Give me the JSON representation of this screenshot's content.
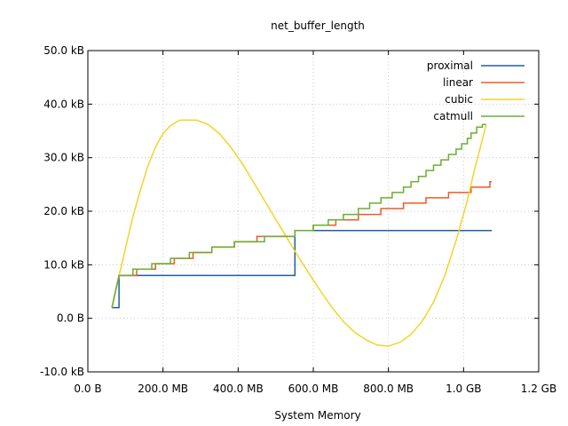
{
  "chart_data": {
    "type": "line",
    "title": "net_buffer_length",
    "xlabel": "System Memory",
    "ylabel": "",
    "xlim": [
      0,
      1.2
    ],
    "ylim": [
      -10,
      50
    ],
    "x_unit": "GB",
    "y_unit": "kB",
    "x_ticks": [
      {
        "value": 0,
        "label": "0.0  B"
      },
      {
        "value": 0.2,
        "label": "200.0 MB"
      },
      {
        "value": 0.4,
        "label": "400.0 MB"
      },
      {
        "value": 0.6,
        "label": "600.0 MB"
      },
      {
        "value": 0.8,
        "label": "800.0 MB"
      },
      {
        "value": 1.0,
        "label": "1.0 GB"
      },
      {
        "value": 1.2,
        "label": "1.2 GB"
      }
    ],
    "y_ticks": [
      {
        "value": 50,
        "label": "50.0 kB"
      },
      {
        "value": 40,
        "label": "40.0 kB"
      },
      {
        "value": 30,
        "label": "30.0 kB"
      },
      {
        "value": 20,
        "label": "20.0 kB"
      },
      {
        "value": 10,
        "label": "10.0 kB"
      },
      {
        "value": 0,
        "label": "0.0  B"
      },
      {
        "value": -10,
        "label": "-10.0 kB"
      }
    ],
    "grid": true,
    "legend_position": "top-right",
    "series": [
      {
        "name": "proximal",
        "color": "#1f5fa0",
        "points": [
          [
            0.064,
            2
          ],
          [
            0.083,
            2
          ],
          [
            0.083,
            8
          ],
          [
            0.551,
            8
          ],
          [
            0.551,
            16.4
          ],
          [
            1.075,
            16.4
          ]
        ]
      },
      {
        "name": "linear",
        "color": "#f05a28",
        "points": [
          [
            0.064,
            2
          ],
          [
            0.083,
            8
          ],
          [
            0.13,
            8
          ],
          [
            0.13,
            9.2
          ],
          [
            0.18,
            9.2
          ],
          [
            0.18,
            10.2
          ],
          [
            0.23,
            10.2
          ],
          [
            0.23,
            11.2
          ],
          [
            0.28,
            11.2
          ],
          [
            0.28,
            12.3
          ],
          [
            0.33,
            12.3
          ],
          [
            0.33,
            13.3
          ],
          [
            0.39,
            13.3
          ],
          [
            0.39,
            14.3
          ],
          [
            0.45,
            14.3
          ],
          [
            0.45,
            15.3
          ],
          [
            0.551,
            15.3
          ],
          [
            0.551,
            16.4
          ],
          [
            0.6,
            16.4
          ],
          [
            0.6,
            17.4
          ],
          [
            0.66,
            17.4
          ],
          [
            0.66,
            18.4
          ],
          [
            0.72,
            18.4
          ],
          [
            0.72,
            19.4
          ],
          [
            0.78,
            19.4
          ],
          [
            0.78,
            20.5
          ],
          [
            0.84,
            20.5
          ],
          [
            0.84,
            21.5
          ],
          [
            0.9,
            21.5
          ],
          [
            0.9,
            22.5
          ],
          [
            0.96,
            22.5
          ],
          [
            0.96,
            23.5
          ],
          [
            1.02,
            23.5
          ],
          [
            1.02,
            24.5
          ],
          [
            1.07,
            24.5
          ],
          [
            1.07,
            25.5
          ],
          [
            1.075,
            25.5
          ]
        ]
      },
      {
        "name": "cubic",
        "color": "#f5d327",
        "points": [
          [
            0.064,
            2
          ],
          [
            0.08,
            7
          ],
          [
            0.1,
            13
          ],
          [
            0.12,
            19
          ],
          [
            0.14,
            24
          ],
          [
            0.16,
            28.5
          ],
          [
            0.18,
            32
          ],
          [
            0.2,
            34.5
          ],
          [
            0.22,
            36
          ],
          [
            0.245,
            37
          ],
          [
            0.29,
            37
          ],
          [
            0.32,
            36.2
          ],
          [
            0.35,
            34.5
          ],
          [
            0.38,
            32
          ],
          [
            0.41,
            29
          ],
          [
            0.44,
            25.5
          ],
          [
            0.47,
            22
          ],
          [
            0.5,
            18.5
          ],
          [
            0.53,
            15
          ],
          [
            0.56,
            11.5
          ],
          [
            0.59,
            8.2
          ],
          [
            0.62,
            5
          ],
          [
            0.65,
            2
          ],
          [
            0.68,
            -0.6
          ],
          [
            0.71,
            -2.6
          ],
          [
            0.74,
            -4
          ],
          [
            0.77,
            -5
          ],
          [
            0.8,
            -5.2
          ],
          [
            0.83,
            -4.5
          ],
          [
            0.86,
            -3
          ],
          [
            0.89,
            -0.5
          ],
          [
            0.92,
            3
          ],
          [
            0.95,
            8
          ],
          [
            0.98,
            14.5
          ],
          [
            1.01,
            22
          ],
          [
            1.03,
            28
          ],
          [
            1.045,
            32
          ],
          [
            1.06,
            36.2
          ]
        ]
      },
      {
        "name": "catmull",
        "color": "#6aaf32",
        "points": [
          [
            0.064,
            2
          ],
          [
            0.083,
            8
          ],
          [
            0.12,
            8
          ],
          [
            0.12,
            9.2
          ],
          [
            0.17,
            9.2
          ],
          [
            0.17,
            10.2
          ],
          [
            0.22,
            10.2
          ],
          [
            0.22,
            11.2
          ],
          [
            0.27,
            11.2
          ],
          [
            0.27,
            12.3
          ],
          [
            0.33,
            12.3
          ],
          [
            0.33,
            13.3
          ],
          [
            0.39,
            13.3
          ],
          [
            0.39,
            14.3
          ],
          [
            0.47,
            14.3
          ],
          [
            0.47,
            15.3
          ],
          [
            0.551,
            15.3
          ],
          [
            0.551,
            16.4
          ],
          [
            0.6,
            16.4
          ],
          [
            0.6,
            17.4
          ],
          [
            0.64,
            17.4
          ],
          [
            0.64,
            18.4
          ],
          [
            0.68,
            18.4
          ],
          [
            0.68,
            19.4
          ],
          [
            0.72,
            19.4
          ],
          [
            0.72,
            20.5
          ],
          [
            0.75,
            20.5
          ],
          [
            0.75,
            21.5
          ],
          [
            0.78,
            21.5
          ],
          [
            0.78,
            22.5
          ],
          [
            0.81,
            22.5
          ],
          [
            0.81,
            23.5
          ],
          [
            0.84,
            23.5
          ],
          [
            0.84,
            24.5
          ],
          [
            0.86,
            24.5
          ],
          [
            0.86,
            25.5
          ],
          [
            0.88,
            25.5
          ],
          [
            0.88,
            26.5
          ],
          [
            0.9,
            26.5
          ],
          [
            0.9,
            27.6
          ],
          [
            0.92,
            27.6
          ],
          [
            0.92,
            28.6
          ],
          [
            0.94,
            28.6
          ],
          [
            0.94,
            29.6
          ],
          [
            0.96,
            29.6
          ],
          [
            0.96,
            30.6
          ],
          [
            0.98,
            30.6
          ],
          [
            0.98,
            31.6
          ],
          [
            0.995,
            31.6
          ],
          [
            0.995,
            32.6
          ],
          [
            1.01,
            32.6
          ],
          [
            1.01,
            33.6
          ],
          [
            1.02,
            33.6
          ],
          [
            1.02,
            34.6
          ],
          [
            1.035,
            34.6
          ],
          [
            1.035,
            35.7
          ],
          [
            1.05,
            35.7
          ],
          [
            1.05,
            36.2
          ],
          [
            1.06,
            36.2
          ]
        ]
      }
    ]
  }
}
